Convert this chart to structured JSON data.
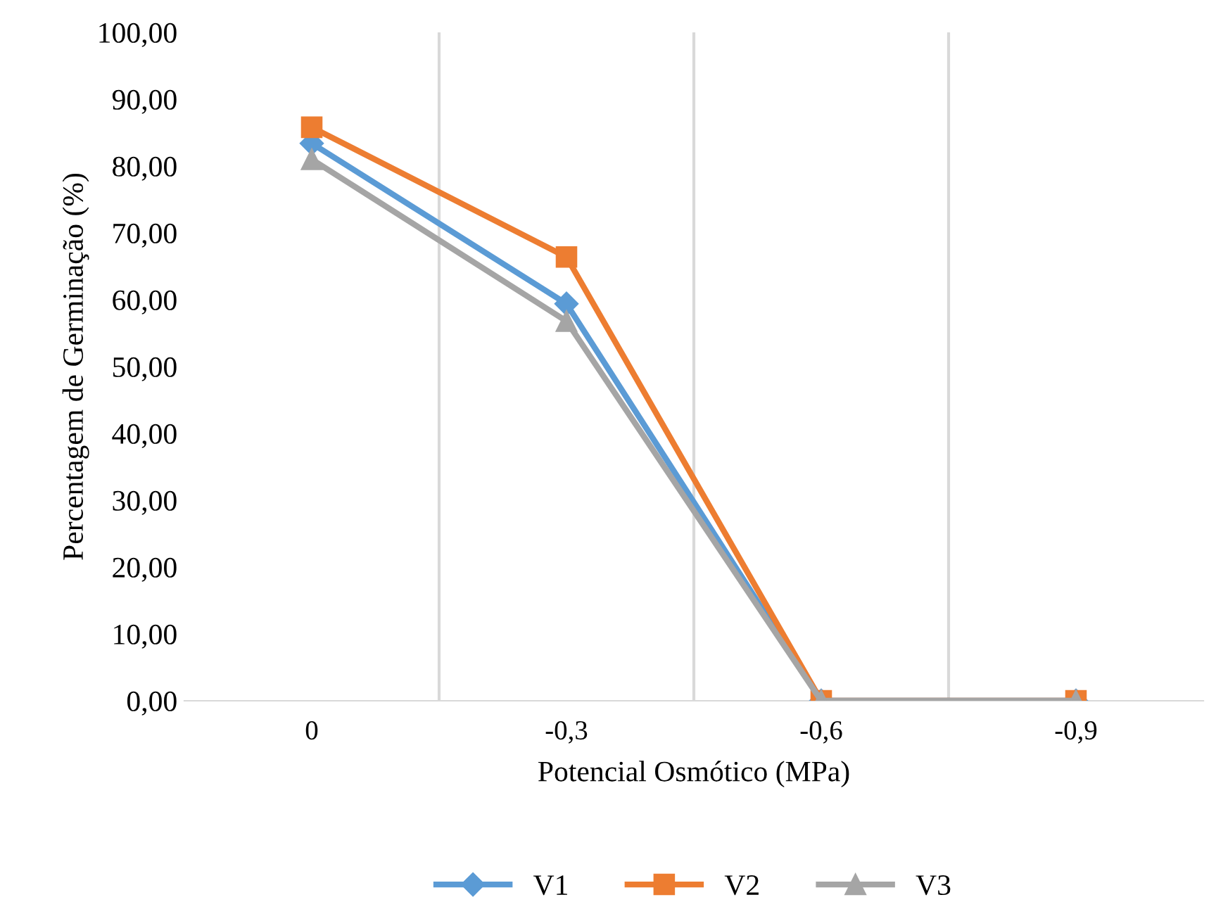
{
  "chart_data": {
    "type": "line",
    "xlabel": "Potencial Osmótico (MPa)",
    "ylabel": "Percentagem de Germinação (%)",
    "categories": [
      "0",
      "-0,3",
      "-0,6",
      "-0,9"
    ],
    "series": [
      {
        "name": "V1",
        "color": "#5b9bd5",
        "values": [
          83.4,
          59.4,
          0,
          0
        ],
        "marker": "diamond"
      },
      {
        "name": "V2",
        "color": "#ed7d31",
        "values": [
          85.8,
          66.4,
          0,
          0
        ],
        "marker": "square"
      },
      {
        "name": "V3",
        "color": "#a5a5a5",
        "values": [
          81.0,
          56.8,
          0,
          0
        ],
        "marker": "triangle"
      }
    ],
    "ylim": [
      0,
      100
    ],
    "yticks": [
      {
        "value": 0,
        "label": "0,00"
      },
      {
        "value": 10,
        "label": "10,00"
      },
      {
        "value": 20,
        "label": "20,00"
      },
      {
        "value": 30,
        "label": "30,00"
      },
      {
        "value": 40,
        "label": "40,00"
      },
      {
        "value": 50,
        "label": "50,00"
      },
      {
        "value": 60,
        "label": "60,00"
      },
      {
        "value": 70,
        "label": "70,00"
      },
      {
        "value": 80,
        "label": "80,00"
      },
      {
        "value": 90,
        "label": "90,00"
      },
      {
        "value": 100,
        "label": "100,00"
      }
    ],
    "grid": "x",
    "legend": "bottom",
    "line_style": "solid"
  }
}
